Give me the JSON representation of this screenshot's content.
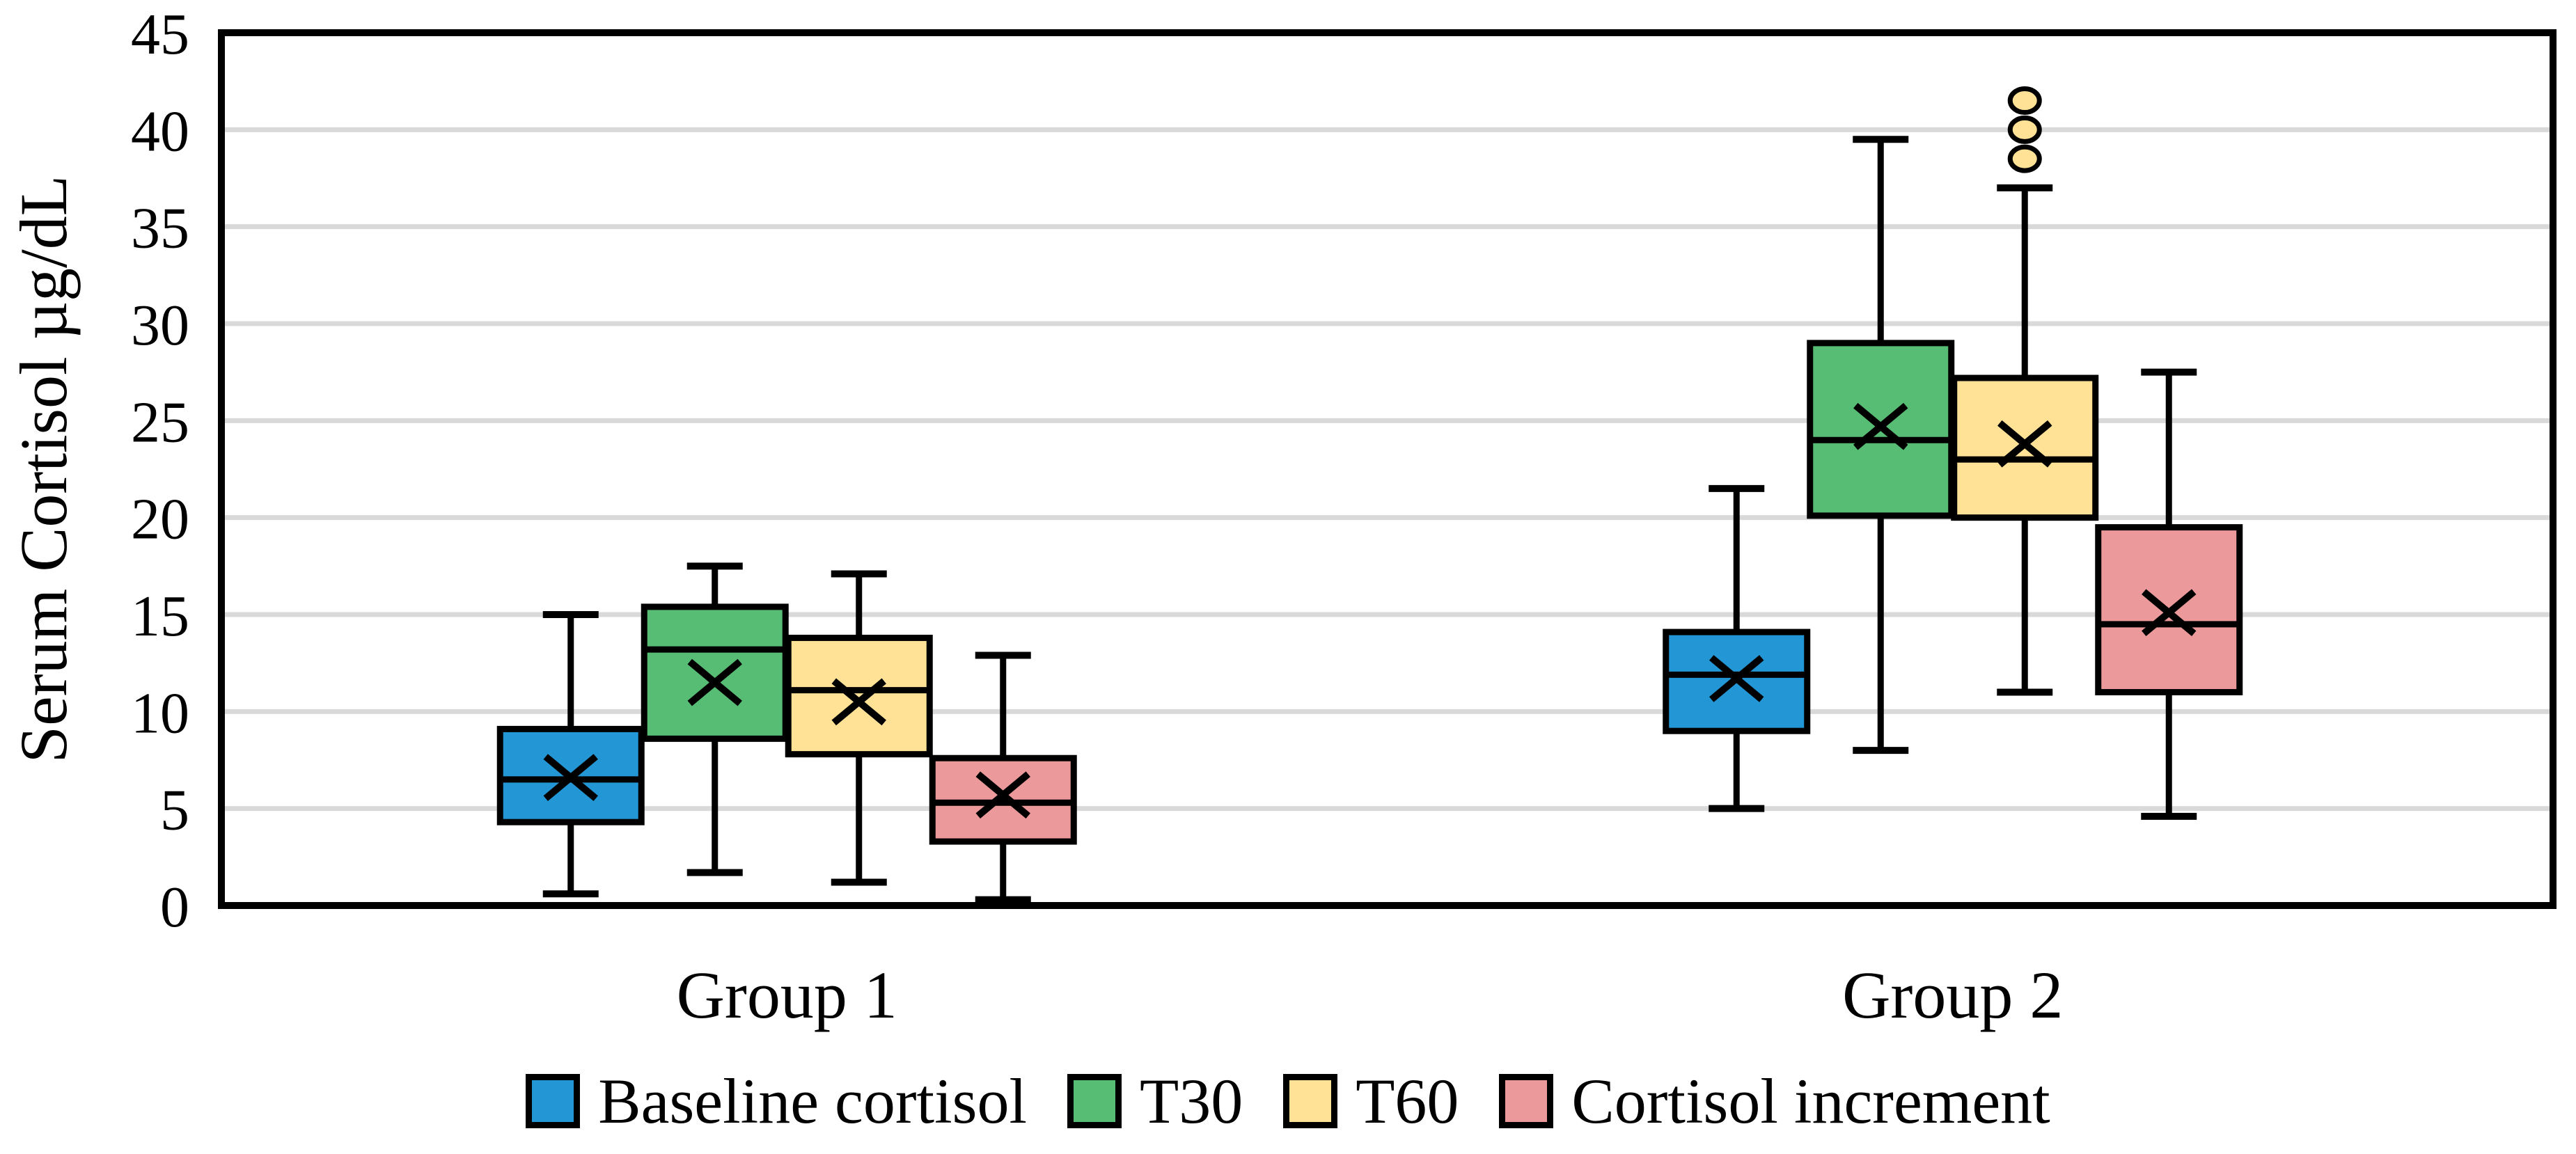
{
  "chart_data": {
    "type": "boxplot",
    "title": "",
    "ylabel": "Serum Cortisol µg/dL",
    "xlabel": "",
    "ylim": [
      0,
      45
    ],
    "ytick_step": 5,
    "grid": "horizontal-only",
    "legend_position": "bottom",
    "categories": [
      "Group 1",
      "Group 2"
    ],
    "series": [
      {
        "name": "Baseline cortisol",
        "color": "#2397D5",
        "data": [
          {
            "low": 0.6,
            "q1": 4.3,
            "median": 6.5,
            "q3": 9.1,
            "high": 15.0,
            "mean": 6.6,
            "outliers": []
          },
          {
            "low": 5.0,
            "q1": 9.0,
            "median": 11.9,
            "q3": 14.1,
            "high": 21.5,
            "mean": 11.7,
            "outliers": []
          }
        ]
      },
      {
        "name": "T30",
        "color": "#57BD74",
        "data": [
          {
            "low": 1.7,
            "q1": 8.6,
            "median": 13.2,
            "q3": 15.4,
            "high": 17.5,
            "mean": 11.5,
            "outliers": []
          },
          {
            "low": 8.0,
            "q1": 20.1,
            "median": 24.0,
            "q3": 29.0,
            "high": 39.5,
            "mean": 24.7,
            "outliers": []
          }
        ]
      },
      {
        "name": "T60",
        "color": "#FFE296",
        "data": [
          {
            "low": 1.2,
            "q1": 7.8,
            "median": 11.1,
            "q3": 13.8,
            "high": 17.1,
            "mean": 10.5,
            "outliers": []
          },
          {
            "low": 11.0,
            "q1": 20.0,
            "median": 23.0,
            "q3": 27.2,
            "high": 37.0,
            "mean": 23.8,
            "outliers": [
              38.5,
              40.0,
              41.5
            ]
          }
        ]
      },
      {
        "name": "Cortisol increment",
        "color": "#EC999B",
        "data": [
          {
            "low": 0.3,
            "q1": 3.3,
            "median": 5.3,
            "q3": 7.6,
            "high": 12.9,
            "mean": 5.7,
            "outliers": []
          },
          {
            "low": 4.6,
            "q1": 11.0,
            "median": 14.5,
            "q3": 19.5,
            "high": 27.5,
            "mean": 15.1,
            "outliers": []
          }
        ]
      }
    ],
    "colors": {
      "gridline": "#D9D9D9",
      "axis": "#000000",
      "background": "#FFFFFF",
      "marker_stroke": "#000000"
    },
    "ytick_labels": [
      "0",
      "5",
      "10",
      "15",
      "20",
      "25",
      "30",
      "35",
      "40",
      "45"
    ]
  }
}
